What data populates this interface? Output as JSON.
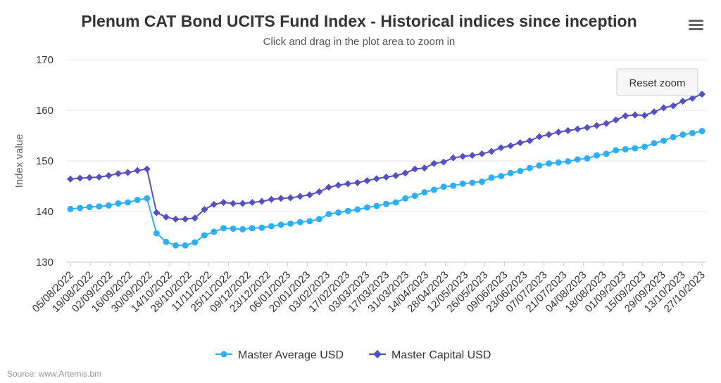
{
  "chart_data": {
    "type": "line",
    "title": "Plenum CAT Bond UCITS Fund Index - Historical indices since inception",
    "subtitle": "Click and drag in the plot area to zoom in",
    "ylabel": "Index value",
    "xlabel": "",
    "ylim": [
      130,
      170
    ],
    "y_ticks": [
      130,
      140,
      150,
      160,
      170
    ],
    "grid": true,
    "legend_position": "bottom-center",
    "x_tick_labels": [
      "05/08/2022",
      "19/08/2022",
      "02/09/2022",
      "16/09/2022",
      "30/09/2022",
      "14/10/2022",
      "28/10/2022",
      "11/11/2022",
      "25/11/2022",
      "09/12/2022",
      "23/12/2022",
      "06/01/2023",
      "20/01/2023",
      "03/02/2023",
      "17/02/2023",
      "03/03/2023",
      "17/03/2023",
      "31/03/2023",
      "14/04/2023",
      "28/04/2023",
      "12/05/2023",
      "26/05/2023",
      "09/06/2023",
      "23/06/2023",
      "07/07/2023",
      "21/07/2023",
      "04/08/2023",
      "18/08/2023",
      "01/09/2023",
      "15/09/2023",
      "29/09/2023",
      "13/10/2023",
      "27/10/2023"
    ],
    "series": [
      {
        "name": "Master Average USD",
        "color": "#2caffe",
        "marker": "circle",
        "values": [
          140.5,
          140.7,
          140.9,
          141.0,
          141.2,
          141.6,
          141.8,
          142.3,
          142.6,
          135.7,
          134.0,
          133.3,
          133.3,
          133.9,
          135.3,
          136.0,
          136.7,
          136.6,
          136.5,
          136.7,
          136.8,
          137.1,
          137.4,
          137.6,
          137.9,
          138.1,
          138.5,
          139.5,
          139.8,
          140.1,
          140.4,
          140.8,
          141.1,
          141.5,
          141.8,
          142.6,
          143.1,
          143.8,
          144.3,
          144.9,
          145.1,
          145.5,
          145.7,
          145.9,
          146.7,
          147.0,
          147.6,
          148.0,
          148.6,
          149.1,
          149.5,
          149.7,
          149.9,
          150.3,
          150.5,
          151.1,
          151.4,
          152.1,
          152.3,
          152.5,
          152.8,
          153.5,
          154.0,
          154.7,
          155.2,
          155.5,
          155.9
        ]
      },
      {
        "name": "Master Capital USD",
        "color": "#544fc5",
        "marker": "diamond",
        "values": [
          146.4,
          146.6,
          146.7,
          146.8,
          147.1,
          147.5,
          147.7,
          148.1,
          148.4,
          139.8,
          138.9,
          138.5,
          138.5,
          138.7,
          140.4,
          141.4,
          141.8,
          141.6,
          141.6,
          141.8,
          142.0,
          142.4,
          142.6,
          142.7,
          143.0,
          143.3,
          143.9,
          144.8,
          145.2,
          145.5,
          145.7,
          146.1,
          146.5,
          146.8,
          147.1,
          147.6,
          148.4,
          148.6,
          149.5,
          149.8,
          150.6,
          150.9,
          151.1,
          151.4,
          151.9,
          152.6,
          153.0,
          153.6,
          154.0,
          154.8,
          155.2,
          155.7,
          156.0,
          156.3,
          156.6,
          157.0,
          157.4,
          158.1,
          158.9,
          159.1,
          159.0,
          159.7,
          160.5,
          160.9,
          161.8,
          162.4,
          163.2
        ]
      }
    ]
  },
  "legend": {
    "items": [
      "Master Average USD",
      "Master Capital USD"
    ]
  },
  "controls": {
    "reset_zoom_label": "Reset zoom",
    "menu_icon": "hamburger-menu-icon"
  },
  "credits": "Source: www.Artemis.bm"
}
